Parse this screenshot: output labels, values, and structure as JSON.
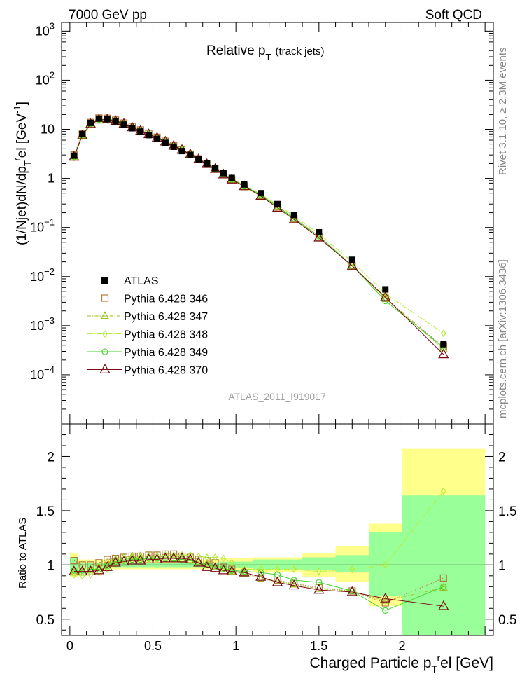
{
  "header": {
    "left": "7000 GeV pp",
    "right": "Soft QCD"
  },
  "side_text": {
    "upper": "Rivet 3.1.10,  ≥ 2.3M events",
    "lower": "mcplots.cern.ch [arXiv:1306.3436]"
  },
  "chart_data": [
    {
      "type": "line",
      "title_main": "Relative p",
      "title_sub": "T",
      "title_extra": "(track jets)",
      "watermark": "ATLAS_2011_I919017",
      "ylabel": "(1/Njet)dN/dp",
      "ylabel_sub": "T",
      "ylabel_sup": "r",
      "ylabel_rest": "el [GeV",
      "ylabel_exp": "-1",
      "ylabel_end": "]",
      "yscale": "log",
      "ylim": [
        1e-05,
        1500
      ],
      "xlim": [
        -0.05,
        2.55
      ],
      "y_ticks": [
        {
          "v": 1000,
          "base": "10",
          "exp": "3"
        },
        {
          "v": 100,
          "base": "10",
          "exp": "2"
        },
        {
          "v": 10,
          "base": "10",
          "exp": ""
        },
        {
          "v": 1,
          "base": "1",
          "exp": ""
        },
        {
          "v": 0.1,
          "base": "10",
          "exp": "−1"
        },
        {
          "v": 0.01,
          "base": "10",
          "exp": "−2"
        },
        {
          "v": 0.001,
          "base": "10",
          "exp": "−3"
        },
        {
          "v": 0.0001,
          "base": "10",
          "exp": "−4"
        }
      ],
      "x": [
        0.025,
        0.075,
        0.125,
        0.175,
        0.225,
        0.275,
        0.325,
        0.375,
        0.425,
        0.475,
        0.525,
        0.575,
        0.625,
        0.675,
        0.725,
        0.775,
        0.825,
        0.875,
        0.925,
        0.975,
        1.05,
        1.15,
        1.25,
        1.35,
        1.5,
        1.7,
        1.9,
        2.25
      ],
      "data": {
        "name": "ATLAS",
        "values": [
          2.9,
          8.0,
          13.5,
          16.5,
          16.0,
          14.5,
          12.5,
          10.5,
          9.0,
          7.6,
          6.4,
          5.3,
          4.4,
          3.6,
          3.0,
          2.45,
          2.0,
          1.6,
          1.28,
          1.02,
          0.75,
          0.5,
          0.3,
          0.18,
          0.08,
          0.022,
          0.0055,
          0.00042
        ]
      },
      "series": [
        {
          "name": "Pythia 6.428 346",
          "color": "#b07c3a",
          "marker": "square",
          "dash": "1.5,2",
          "values": [
            3.0,
            8.0,
            13.8,
            17.0,
            16.8,
            15.4,
            13.4,
            11.4,
            9.7,
            8.2,
            6.9,
            5.7,
            4.7,
            3.8,
            3.1,
            2.5,
            2.0,
            1.55,
            1.2,
            0.94,
            0.68,
            0.44,
            0.26,
            0.15,
            0.064,
            0.0167,
            0.0036,
            0.00037
          ]
        },
        {
          "name": "Pythia 6.428 347",
          "color": "#9bbf1f",
          "marker": "triangle",
          "dash": "5,2,1.5,2",
          "values": [
            2.7,
            7.5,
            13.0,
            16.0,
            16.3,
            15.2,
            13.3,
            11.3,
            9.6,
            8.2,
            6.9,
            5.7,
            4.6,
            3.8,
            3.1,
            2.5,
            2.0,
            1.55,
            1.2,
            0.94,
            0.68,
            0.44,
            0.26,
            0.15,
            0.063,
            0.0165,
            0.0036,
            0.00033
          ]
        },
        {
          "name": "Pythia 6.428 348",
          "color": "#b4ec3c",
          "marker": "diamond",
          "dash": "8,2,1.5,2",
          "values": [
            2.65,
            7.2,
            12.4,
            15.2,
            15.4,
            14.6,
            13.1,
            11.2,
            9.6,
            8.2,
            6.9,
            5.8,
            4.8,
            3.9,
            3.25,
            2.6,
            2.1,
            1.65,
            1.3,
            1.0,
            0.72,
            0.48,
            0.29,
            0.17,
            0.075,
            0.02,
            0.0045,
            0.0007
          ]
        },
        {
          "name": "Pythia 6.428 349",
          "color": "#43d629",
          "marker": "circle",
          "dash": "",
          "values": [
            2.8,
            7.6,
            13.0,
            15.8,
            15.8,
            15.0,
            13.0,
            11.0,
            9.4,
            8.0,
            6.8,
            5.6,
            4.6,
            3.8,
            3.1,
            2.5,
            2.0,
            1.6,
            1.23,
            0.97,
            0.7,
            0.46,
            0.27,
            0.155,
            0.067,
            0.0167,
            0.0032,
            0.00036
          ]
        },
        {
          "name": "Pythia 6.428 370",
          "color": "#7a0b14",
          "marker": "triangle",
          "dash": "",
          "values": [
            2.75,
            7.5,
            12.8,
            15.7,
            15.8,
            14.8,
            12.9,
            10.9,
            9.3,
            7.9,
            6.7,
            5.6,
            4.6,
            3.8,
            3.1,
            2.45,
            1.95,
            1.55,
            1.2,
            0.94,
            0.69,
            0.44,
            0.25,
            0.145,
            0.062,
            0.0165,
            0.0038,
            0.00026
          ]
        }
      ]
    },
    {
      "type": "line",
      "ylabel": "Ratio to ATLAS",
      "xlabel": "Charged Particle p",
      "xlabel_sub": "T",
      "xlabel_sup": "r",
      "xlabel_rest": "el [GeV]",
      "ylim": [
        0.35,
        2.3
      ],
      "xlim": [
        -0.05,
        2.55
      ],
      "y_ticks": [
        "0.5",
        "1",
        "1.5",
        "2"
      ],
      "y_tick_values": [
        0.5,
        1,
        1.5,
        2
      ],
      "x_ticks": [
        "0",
        "0.5",
        "1",
        "1.5",
        "2"
      ],
      "x_tick_values": [
        0,
        0.5,
        1,
        1.5,
        2
      ],
      "bands": [
        {
          "x0": 0.0,
          "x1": 0.05,
          "y_lo": 0.89,
          "y_hi": 1.11
        },
        {
          "x0": 0.05,
          "x1": 0.9,
          "y_lo": 0.96,
          "y_hi": 1.05
        },
        {
          "x0": 0.9,
          "x1": 1.1,
          "y_lo": 0.95,
          "y_hi": 1.06
        },
        {
          "x0": 1.1,
          "x1": 1.4,
          "y_lo": 0.93,
          "y_hi": 1.07
        },
        {
          "x0": 1.4,
          "x1": 1.6,
          "y_lo": 0.89,
          "y_hi": 1.11
        },
        {
          "x0": 1.6,
          "x1": 1.8,
          "y_lo": 0.84,
          "y_hi": 1.17
        },
        {
          "x0": 1.8,
          "x1": 2.0,
          "y_lo": 0.62,
          "y_hi": 1.38
        },
        {
          "x0": 2.0,
          "x1": 2.5,
          "y_lo": 0.0,
          "y_hi": 2.07
        }
      ],
      "stat_bands": [
        {
          "x0": 0.0,
          "x1": 0.05,
          "y_lo": 0.94,
          "y_hi": 1.06
        },
        {
          "x0": 0.05,
          "x1": 0.9,
          "y_lo": 0.98,
          "y_hi": 1.02
        },
        {
          "x0": 0.9,
          "x1": 1.1,
          "y_lo": 0.97,
          "y_hi": 1.03
        },
        {
          "x0": 1.1,
          "x1": 1.4,
          "y_lo": 0.96,
          "y_hi": 1.05
        },
        {
          "x0": 1.4,
          "x1": 1.6,
          "y_lo": 0.95,
          "y_hi": 1.07
        },
        {
          "x0": 1.6,
          "x1": 1.8,
          "y_lo": 0.93,
          "y_hi": 1.09
        },
        {
          "x0": 1.8,
          "x1": 2.0,
          "y_lo": 0.71,
          "y_hi": 1.3
        },
        {
          "x0": 2.0,
          "x1": 2.5,
          "y_lo": 0.0,
          "y_hi": 1.64
        }
      ],
      "series": [
        {
          "name": "Pythia 6.428 346",
          "values": [
            1.04,
            1.0,
            1.0,
            1.02,
            1.05,
            1.06,
            1.07,
            1.08,
            1.08,
            1.09,
            1.09,
            1.1,
            1.1,
            1.08,
            1.07,
            1.05,
            1.04,
            1.02,
            0.98,
            0.96,
            0.93,
            0.88,
            0.86,
            0.83,
            0.79,
            0.76,
            0.65,
            0.88
          ]
        },
        {
          "name": "Pythia 6.428 347",
          "values": [
            0.93,
            0.93,
            0.95,
            0.98,
            1.02,
            1.05,
            1.07,
            1.08,
            1.08,
            1.08,
            1.08,
            1.07,
            1.06,
            1.05,
            1.04,
            1.03,
            1.01,
            0.98,
            0.96,
            0.94,
            0.92,
            0.87,
            0.85,
            0.82,
            0.78,
            0.76,
            0.67,
            0.79
          ]
        },
        {
          "name": "Pythia 6.428 348",
          "values": [
            0.91,
            0.9,
            0.91,
            0.93,
            0.96,
            1.01,
            1.05,
            1.07,
            1.07,
            1.08,
            1.08,
            1.09,
            1.09,
            1.09,
            1.09,
            1.08,
            1.07,
            1.07,
            1.06,
            1.02,
            0.96,
            0.96,
            0.96,
            0.96,
            0.94,
            0.96,
            1.0,
            1.68
          ]
        },
        {
          "name": "Pythia 6.428 349",
          "values": [
            0.95,
            0.95,
            0.96,
            0.96,
            0.99,
            1.03,
            1.04,
            1.05,
            1.05,
            1.06,
            1.06,
            1.06,
            1.06,
            1.05,
            1.04,
            1.02,
            1.0,
            0.98,
            0.97,
            0.95,
            0.94,
            0.93,
            0.91,
            0.86,
            0.84,
            0.76,
            0.58,
            0.8
          ]
        },
        {
          "name": "Pythia 6.428 370",
          "values": [
            0.94,
            0.94,
            0.94,
            0.95,
            0.98,
            1.02,
            1.03,
            1.04,
            1.04,
            1.05,
            1.05,
            1.06,
            1.06,
            1.06,
            1.05,
            1.02,
            0.98,
            0.97,
            0.95,
            0.94,
            0.93,
            0.89,
            0.84,
            0.81,
            0.77,
            0.75,
            0.69,
            0.62
          ]
        }
      ]
    }
  ],
  "colors": {
    "band_outer": "#ffff8c",
    "band_inner": "#99ff99",
    "data_marker": "#000000"
  }
}
